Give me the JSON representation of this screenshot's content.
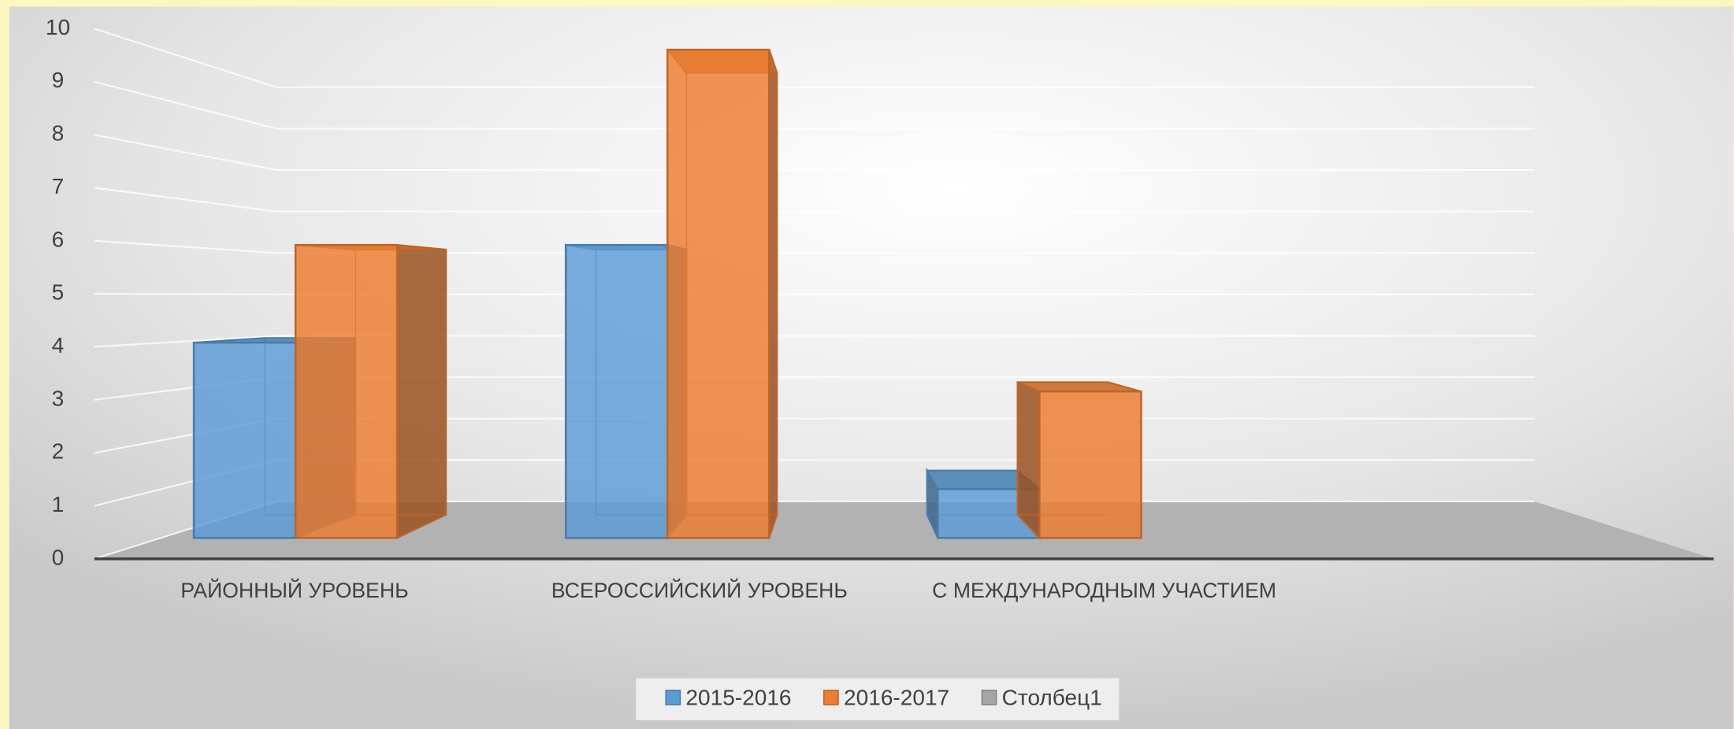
{
  "chart_data": {
    "type": "bar3d",
    "categories": [
      "РАЙОННЫЙ УРОВЕНЬ",
      "ВСЕРОССИЙСКИЙ УРОВЕНЬ",
      "С МЕЖДУНАРОДНЫМ УЧАСТИЕМ",
      null
    ],
    "series": [
      {
        "name": "2015-2016",
        "color": "#5b9bd5",
        "values": [
          4,
          6,
          1,
          null
        ]
      },
      {
        "name": "2016-2017",
        "color": "#ed7d31",
        "values": [
          6,
          10,
          3,
          null
        ]
      },
      {
        "name": "Столбец1",
        "color": "#a5a5a5",
        "values": [
          null,
          null,
          null,
          null
        ]
      }
    ],
    "ylim": [
      0,
      10
    ],
    "yticks": [
      0,
      1,
      2,
      3,
      4,
      5,
      6,
      7,
      8,
      9,
      10
    ],
    "grid": true,
    "legend": "bottom"
  }
}
